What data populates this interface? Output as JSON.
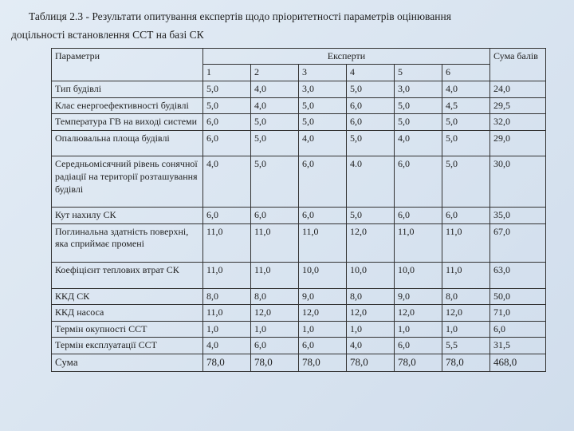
{
  "caption_line1": "Таблиця 2.3 - Результати опитування експертів щодо пріоритетності параметрів оцінювання",
  "caption_line2": "доцільності встановлення ССТ на базі СК",
  "headers": {
    "param": "Параметри",
    "experts": "Експерти",
    "sum": "Сума балів",
    "cols": [
      "1",
      "2",
      "3",
      "4",
      "5",
      "6"
    ]
  },
  "rows": [
    {
      "name": "Тип будівлі",
      "v": [
        "5,0",
        "4,0",
        "3,0",
        "5,0",
        "3,0",
        "4,0"
      ],
      "sum": "24,0"
    },
    {
      "name": "Клас енергоефективності будівлі",
      "v": [
        "5,0",
        "4,0",
        "5,0",
        "6,0",
        "5,0",
        "4,5"
      ],
      "sum": "29,5"
    },
    {
      "name": "Температура ГВ на виході системи",
      "v": [
        "6,0",
        "5,0",
        "5,0",
        "6,0",
        "5,0",
        "5,0"
      ],
      "sum": "32,0"
    },
    {
      "name": "Опалювальна площа будівлі",
      "v": [
        "6,0",
        "5,0",
        "4,0",
        "5,0",
        "4,0",
        "5,0"
      ],
      "sum": "29,0",
      "pad": true
    },
    {
      "name": "Середньомісячний рівень сонячної радіації на території розташування будівлі",
      "v": [
        "4,0",
        "5,0",
        "6,0",
        "4.0",
        "6,0",
        "5,0"
      ],
      "sum": "30,0",
      "pad": true
    },
    {
      "name": "Кут нахилу СК",
      "v": [
        "6,0",
        "6,0",
        "6,0",
        "5,0",
        "6,0",
        "6,0"
      ],
      "sum": "35,0"
    },
    {
      "name": "Поглинальна здатність поверхні, яка сприймає промені",
      "v": [
        "11,0",
        "11,0",
        "11,0",
        "12,0",
        "11,0",
        "11,0"
      ],
      "sum": "67,0",
      "pad": true
    },
    {
      "name": "Коефіцієнт теплових втрат СК",
      "v": [
        "11,0",
        "11,0",
        "10,0",
        "10,0",
        "10,0",
        "11,0"
      ],
      "sum": "63,0",
      "pad": true
    },
    {
      "name": "ККД СК",
      "v": [
        "8,0",
        "8,0",
        "9,0",
        "8,0",
        "9,0",
        "8,0"
      ],
      "sum": "50,0"
    },
    {
      "name": "ККД насоса",
      "v": [
        "11,0",
        "12,0",
        "12,0",
        "12,0",
        "12,0",
        "12,0"
      ],
      "sum": "71,0"
    },
    {
      "name": "Термін окупності ССТ",
      "v": [
        "1,0",
        "1,0",
        "1,0",
        "1,0",
        "1,0",
        "1,0"
      ],
      "sum": "6,0"
    },
    {
      "name": "Термін експлуатації ССТ",
      "v": [
        "4,0",
        "6,0",
        "6,0",
        "4,0",
        "6,0",
        "5,5"
      ],
      "sum": "31,5"
    }
  ],
  "totals": {
    "label": "Сума",
    "v": [
      "78,0",
      "78,0",
      "78,0",
      "78,0",
      "78,0",
      "78,0"
    ],
    "sum": "468,0"
  }
}
